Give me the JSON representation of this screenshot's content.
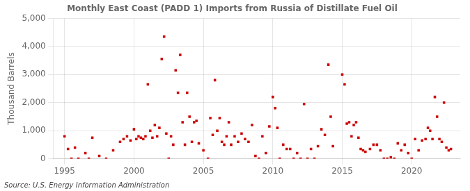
{
  "chart_data": {
    "type": "scatter",
    "title": "Monthly East Coast (PADD 1) Imports from Russia of Distillate Fuel Oil",
    "ylabel": "Thousand Barrels",
    "annotations": [
      "Source: U.S. Energy Information Administration"
    ],
    "color": "#cc0000",
    "marker": "square",
    "grid": true,
    "xlim": [
      1994.2,
      2023.5
    ],
    "xticks": [
      1995,
      2000,
      2005,
      2010,
      2015,
      2020
    ],
    "ylim": [
      0,
      5000
    ],
    "yticks": [
      0,
      {
        "value": 1000,
        "label": "1,000"
      },
      {
        "value": 2000,
        "label": "2,000"
      },
      {
        "value": 3000,
        "label": "3,000"
      },
      {
        "value": 4000,
        "label": "4,000"
      },
      {
        "value": 5000,
        "label": "5,000"
      }
    ],
    "x": [
      1995.0,
      1995.25,
      1995.5,
      1995.75,
      1996.0,
      1996.5,
      1996.75,
      1997.0,
      1997.5,
      1998.0,
      1998.5,
      1999.0,
      1999.25,
      1999.5,
      1999.75,
      2000.0,
      2000.17,
      2000.33,
      2000.5,
      2000.67,
      2000.83,
      2001.0,
      2001.17,
      2001.33,
      2001.5,
      2001.67,
      2001.83,
      2002.0,
      2002.17,
      2002.33,
      2002.5,
      2002.67,
      2002.83,
      2003.0,
      2003.17,
      2003.33,
      2003.5,
      2003.67,
      2003.83,
      2004.0,
      2004.17,
      2004.33,
      2004.5,
      2004.67,
      2005.0,
      2005.33,
      2005.5,
      2005.67,
      2005.83,
      2006.0,
      2006.17,
      2006.33,
      2006.5,
      2006.67,
      2006.83,
      2007.0,
      2007.25,
      2007.5,
      2007.75,
      2008.0,
      2008.25,
      2008.5,
      2008.75,
      2009.0,
      2009.25,
      2009.5,
      2009.75,
      2010.0,
      2010.17,
      2010.33,
      2010.5,
      2010.75,
      2011.0,
      2011.25,
      2011.5,
      2011.75,
      2012.0,
      2012.25,
      2012.5,
      2012.75,
      2013.0,
      2013.25,
      2013.5,
      2013.75,
      2014.0,
      2014.17,
      2014.33,
      2015.0,
      2015.17,
      2015.33,
      2015.5,
      2015.67,
      2015.83,
      2016.0,
      2016.17,
      2016.33,
      2016.5,
      2016.67,
      2017.0,
      2017.25,
      2017.5,
      2017.75,
      2018.0,
      2018.25,
      2018.5,
      2018.75,
      2019.0,
      2019.25,
      2019.5,
      2019.75,
      2020.0,
      2020.25,
      2020.5,
      2020.75,
      2021.0,
      2021.17,
      2021.33,
      2021.5,
      2021.67,
      2021.83,
      2022.0,
      2022.17,
      2022.33,
      2022.5,
      2022.67,
      2022.83
    ],
    "values": [
      800,
      350,
      0,
      400,
      0,
      200,
      0,
      750,
      100,
      0,
      300,
      600,
      700,
      800,
      650,
      1050,
      700,
      800,
      750,
      700,
      800,
      2650,
      1000,
      750,
      1200,
      800,
      1100,
      3550,
      4350,
      900,
      0,
      800,
      500,
      3150,
      2350,
      3700,
      1300,
      500,
      2350,
      1500,
      600,
      1300,
      1350,
      550,
      300,
      0,
      1450,
      850,
      2800,
      1000,
      1450,
      600,
      500,
      800,
      1300,
      500,
      800,
      600,
      900,
      700,
      600,
      1200,
      100,
      0,
      800,
      200,
      1150,
      2200,
      1800,
      1100,
      0,
      500,
      350,
      350,
      0,
      200,
      0,
      1950,
      0,
      350,
      0,
      450,
      1050,
      850,
      3350,
      1500,
      450,
      3000,
      2650,
      1250,
      1300,
      800,
      1200,
      1300,
      750,
      350,
      300,
      250,
      350,
      500,
      500,
      300,
      0,
      0,
      50,
      0,
      550,
      300,
      500,
      200,
      0,
      700,
      300,
      650,
      700,
      1100,
      1000,
      700,
      2200,
      1500,
      700,
      600,
      2000,
      400,
      300,
      350
    ]
  }
}
